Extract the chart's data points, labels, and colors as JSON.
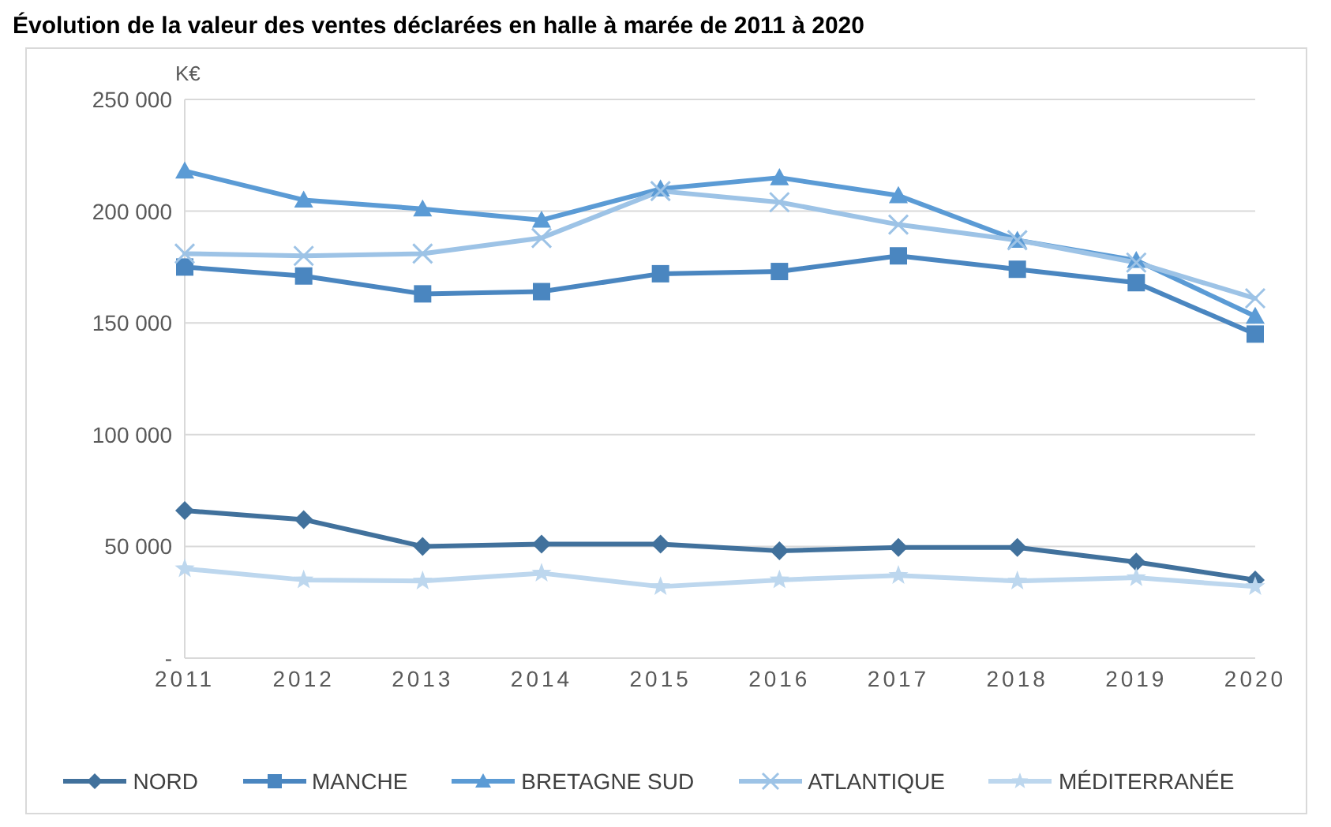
{
  "chart_data": {
    "type": "line",
    "title": "Évolution de la valeur des ventes déclarées en halle à marée de 2011 à 2020",
    "ylabel": "K€",
    "categories": [
      "2011",
      "2012",
      "2013",
      "2014",
      "2015",
      "2016",
      "2017",
      "2018",
      "2019",
      "2020"
    ],
    "series": [
      {
        "name": "NORD",
        "color": "#41719c",
        "marker": "diamond",
        "values": [
          66000,
          62000,
          50000,
          51000,
          51000,
          48000,
          49500,
          49500,
          43000,
          35000
        ]
      },
      {
        "name": "MANCHE",
        "color": "#4a86c0",
        "marker": "square",
        "values": [
          175000,
          171000,
          163000,
          164000,
          172000,
          173000,
          180000,
          174000,
          168000,
          145000
        ]
      },
      {
        "name": "BRETAGNE SUD",
        "color": "#5b9bd5",
        "marker": "triangle",
        "values": [
          218000,
          205000,
          201000,
          196000,
          210000,
          215000,
          207000,
          187000,
          178000,
          153000
        ]
      },
      {
        "name": "ATLANTIQUE",
        "color": "#9dc3e6",
        "marker": "cross",
        "values": [
          181000,
          180000,
          181000,
          188000,
          209000,
          204000,
          194000,
          187000,
          177000,
          161000
        ]
      },
      {
        "name": "MÉDITERRANÉE",
        "color": "#bdd7ee",
        "marker": "star",
        "values": [
          40000,
          35000,
          34500,
          38000,
          32000,
          35000,
          37000,
          34500,
          36000,
          32000
        ]
      }
    ],
    "ylim": [
      0,
      250000
    ],
    "yticks": [
      {
        "value": 0,
        "label": "-"
      },
      {
        "value": 50000,
        "label": "50 000"
      },
      {
        "value": 100000,
        "label": "100 000"
      },
      {
        "value": 150000,
        "label": "150 000"
      },
      {
        "value": 200000,
        "label": "200 000"
      },
      {
        "value": 250000,
        "label": "250 000"
      }
    ],
    "grid": "y",
    "legend": "bottom",
    "line_style": "solid"
  }
}
